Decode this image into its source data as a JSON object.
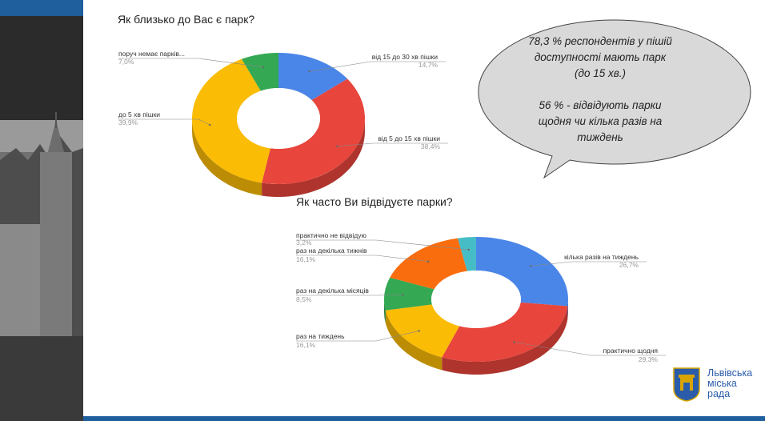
{
  "chart_data": [
    {
      "type": "pie",
      "title": "Як близько до Вас є парк?",
      "labels": [
        "від 15 до 30 хв пішки",
        "від 5 до 15 хв пішки",
        "до 5 хв пішки",
        "поруч немає парків..."
      ],
      "values": [
        14.7,
        38.4,
        39.9,
        7.0
      ],
      "value_labels": [
        "14,7%",
        "38,4%",
        "39,9%",
        "7,0%"
      ],
      "colors": [
        "#4a86e8",
        "#e8453c",
        "#fbbc05",
        "#34a853"
      ]
    },
    {
      "type": "pie",
      "title": "Як часто Ви відвідуєте парки?",
      "labels": [
        "кілька разів на тиждень",
        "практично щодня",
        "раз на тиждень",
        "раз на декілька місяців",
        "раз на декілька тижнів",
        "практично не відвідую"
      ],
      "values": [
        26.7,
        29.3,
        16.1,
        8.5,
        16.1,
        3.2
      ],
      "value_labels": [
        "26,7%",
        "29,3%",
        "16,1%",
        "8,5%",
        "16,1%",
        "3,2%"
      ],
      "colors": [
        "#4a86e8",
        "#e8453c",
        "#fbbc05",
        "#34a853",
        "#fa6d0f",
        "#46bdc6"
      ]
    }
  ],
  "bubble": {
    "lines": [
      "78,3 % респондентів у пішій",
      "доступності мають  парк",
      "(до 15 хв.)",
      "",
      "56 % - відвідують парки",
      "щодня чи кілька разів на",
      "тиждень"
    ]
  },
  "logo": {
    "line1": "Львівська",
    "line2": "міська",
    "line3": "рада"
  },
  "colors": {
    "brand_blue": "#1f5f9e"
  }
}
